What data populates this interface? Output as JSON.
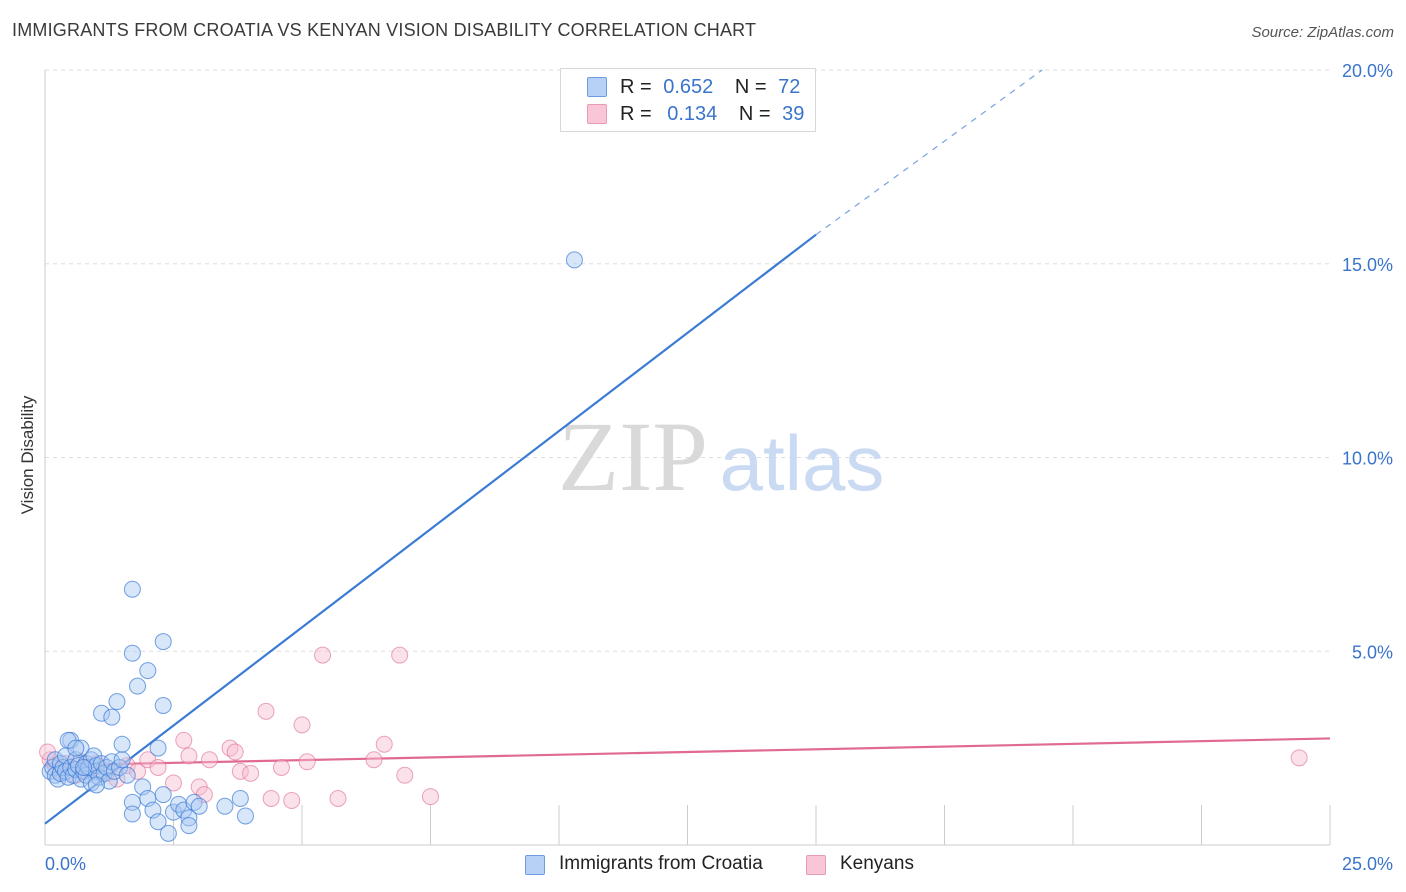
{
  "header": {
    "title": "IMMIGRANTS FROM CROATIA VS KENYAN VISION DISABILITY CORRELATION CHART",
    "source": "Source: ZipAtlas.com"
  },
  "watermark": {
    "zip": "ZIP",
    "atlas": "atlas"
  },
  "legend": {
    "blue": {
      "r_label": "R =",
      "r_value": "0.652",
      "n_label": "N =",
      "n_value": "72"
    },
    "pink": {
      "r_label": "R =",
      "r_value": "0.134",
      "n_label": "N =",
      "n_value": "39"
    }
  },
  "colors": {
    "blue": "#3a7bd5",
    "blue_fill": "#a9c8f2",
    "pink": "#e06a92",
    "pink_fill": "#f7bcd0",
    "grid": "#dddddd",
    "tick_text": "#3a74cc"
  },
  "chart_data": {
    "type": "scatter",
    "title": "IMMIGRANTS FROM CROATIA VS KENYAN VISION DISABILITY CORRELATION CHART",
    "xlabel": "",
    "ylabel": "Vision Disability",
    "xlim": [
      0,
      25
    ],
    "ylim": [
      0,
      20
    ],
    "x_tick_labels": [
      "0.0%",
      "25.0%"
    ],
    "y_ticks": [
      5,
      10,
      15,
      20
    ],
    "y_tick_labels": [
      "5.0%",
      "10.0%",
      "15.0%",
      "20.0%"
    ],
    "legend_position": "bottom",
    "series": [
      {
        "name": "Immigrants from Croatia",
        "color": "#3a7bd5",
        "R": 0.652,
        "N": 72,
        "trend": {
          "x0": 0.0,
          "y0": 0.55,
          "x1": 15.0,
          "y1": 15.75,
          "dash_to_x": 19.4,
          "dash_to_y": 20.0
        },
        "points": [
          [
            0.1,
            1.9
          ],
          [
            0.15,
            2.0
          ],
          [
            0.2,
            1.8
          ],
          [
            0.2,
            2.2
          ],
          [
            0.25,
            1.7
          ],
          [
            0.3,
            2.1
          ],
          [
            0.3,
            1.85
          ],
          [
            0.35,
            2.0
          ],
          [
            0.4,
            1.9
          ],
          [
            0.4,
            2.3
          ],
          [
            0.45,
            1.75
          ],
          [
            0.5,
            2.0
          ],
          [
            0.5,
            2.7
          ],
          [
            0.55,
            1.8
          ],
          [
            0.6,
            2.2
          ],
          [
            0.6,
            1.95
          ],
          [
            0.65,
            2.05
          ],
          [
            0.7,
            1.7
          ],
          [
            0.7,
            2.5
          ],
          [
            0.75,
            1.9
          ],
          [
            0.8,
            2.1
          ],
          [
            0.8,
            1.8
          ],
          [
            0.85,
            2.0
          ],
          [
            0.9,
            2.2
          ],
          [
            0.9,
            1.6
          ],
          [
            0.95,
            2.3
          ],
          [
            1.0,
            1.9
          ],
          [
            1.0,
            2.05
          ],
          [
            1.05,
            1.75
          ],
          [
            1.1,
            2.1
          ],
          [
            1.15,
            1.85
          ],
          [
            1.2,
            2.0
          ],
          [
            1.25,
            1.65
          ],
          [
            1.3,
            2.15
          ],
          [
            1.35,
            1.9
          ],
          [
            0.45,
            2.7
          ],
          [
            0.75,
            2.0
          ],
          [
            0.6,
            2.5
          ],
          [
            1.0,
            1.55
          ],
          [
            1.45,
            2.0
          ],
          [
            1.5,
            2.2
          ],
          [
            1.6,
            1.8
          ],
          [
            1.1,
            3.4
          ],
          [
            1.4,
            3.7
          ],
          [
            1.3,
            3.3
          ],
          [
            1.8,
            4.1
          ],
          [
            2.3,
            3.6
          ],
          [
            2.0,
            4.5
          ],
          [
            1.7,
            6.6
          ],
          [
            1.7,
            4.95
          ],
          [
            2.3,
            5.25
          ],
          [
            1.7,
            1.1
          ],
          [
            1.7,
            0.8
          ],
          [
            1.9,
            1.5
          ],
          [
            2.0,
            1.2
          ],
          [
            2.1,
            0.9
          ],
          [
            2.2,
            0.6
          ],
          [
            2.3,
            1.3
          ],
          [
            2.4,
            0.3
          ],
          [
            2.5,
            0.85
          ],
          [
            2.6,
            1.05
          ],
          [
            2.7,
            0.9
          ],
          [
            2.8,
            0.7
          ],
          [
            2.9,
            1.1
          ],
          [
            2.2,
            2.5
          ],
          [
            1.5,
            2.6
          ],
          [
            3.0,
            1.0
          ],
          [
            3.5,
            1.0
          ],
          [
            3.8,
            1.2
          ],
          [
            3.9,
            0.75
          ],
          [
            10.3,
            15.1
          ],
          [
            2.8,
            0.5
          ]
        ]
      },
      {
        "name": "Kenyans",
        "color": "#e06a92",
        "R": 0.134,
        "N": 39,
        "trend": {
          "x0": 0.0,
          "y0": 2.05,
          "x1": 25.0,
          "y1": 2.75
        },
        "points": [
          [
            0.1,
            2.2
          ],
          [
            0.2,
            2.05
          ],
          [
            0.3,
            1.9
          ],
          [
            0.4,
            2.1
          ],
          [
            0.5,
            2.0
          ],
          [
            0.6,
            1.8
          ],
          [
            0.7,
            2.15
          ],
          [
            0.8,
            2.0
          ],
          [
            0.9,
            1.95
          ],
          [
            1.0,
            2.1
          ],
          [
            1.2,
            1.85
          ],
          [
            1.4,
            1.7
          ],
          [
            1.6,
            2.05
          ],
          [
            1.8,
            1.9
          ],
          [
            2.0,
            2.2
          ],
          [
            2.2,
            2.0
          ],
          [
            2.5,
            1.6
          ],
          [
            2.7,
            2.7
          ],
          [
            2.8,
            2.3
          ],
          [
            3.0,
            1.5
          ],
          [
            3.2,
            2.2
          ],
          [
            3.6,
            2.5
          ],
          [
            3.8,
            1.9
          ],
          [
            4.0,
            1.85
          ],
          [
            3.1,
            1.3
          ],
          [
            3.7,
            2.4
          ],
          [
            4.4,
            1.2
          ],
          [
            4.6,
            2.0
          ],
          [
            4.8,
            1.15
          ],
          [
            5.0,
            3.1
          ],
          [
            4.3,
            3.45
          ],
          [
            5.1,
            2.15
          ],
          [
            5.4,
            4.9
          ],
          [
            5.7,
            1.2
          ],
          [
            6.4,
            2.2
          ],
          [
            6.6,
            2.6
          ],
          [
            7.0,
            1.8
          ],
          [
            7.5,
            1.25
          ],
          [
            24.4,
            2.25
          ]
        ]
      }
    ],
    "extra_pink_points": [
      [
        6.9,
        4.9
      ],
      [
        0.05,
        2.4
      ]
    ]
  },
  "bottom_legend": {
    "blue_label": "Immigrants from Croatia",
    "pink_label": "Kenyans"
  }
}
